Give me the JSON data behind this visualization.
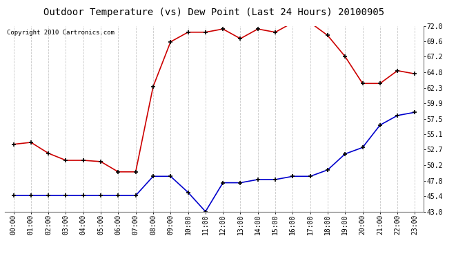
{
  "title": "Outdoor Temperature (vs) Dew Point (Last 24 Hours) 20100905",
  "copyright": "Copyright 2010 Cartronics.com",
  "x_labels": [
    "00:00",
    "01:00",
    "02:00",
    "03:00",
    "04:00",
    "05:00",
    "06:00",
    "07:00",
    "08:00",
    "09:00",
    "10:00",
    "11:00",
    "12:00",
    "13:00",
    "14:00",
    "15:00",
    "16:00",
    "17:00",
    "18:00",
    "19:00",
    "20:00",
    "21:00",
    "22:00",
    "23:00"
  ],
  "temp_data": [
    53.5,
    53.8,
    52.1,
    51.0,
    51.0,
    50.8,
    49.2,
    49.2,
    62.5,
    69.5,
    71.0,
    71.0,
    71.5,
    70.0,
    71.5,
    71.0,
    72.5,
    72.5,
    70.5,
    67.2,
    63.0,
    63.0,
    65.0,
    64.5
  ],
  "dew_data": [
    45.5,
    45.5,
    45.5,
    45.5,
    45.5,
    45.5,
    45.5,
    45.5,
    48.5,
    48.5,
    46.0,
    43.0,
    47.5,
    47.5,
    48.0,
    48.0,
    48.5,
    48.5,
    49.5,
    52.0,
    53.0,
    56.5,
    58.0,
    58.5
  ],
  "temp_color": "#cc0000",
  "dew_color": "#0000cc",
  "bg_color": "#ffffff",
  "grid_color": "#c8c8c8",
  "ylim": [
    43.0,
    72.0
  ],
  "yticks": [
    43.0,
    45.4,
    47.8,
    50.2,
    52.7,
    55.1,
    57.5,
    59.9,
    62.3,
    64.8,
    67.2,
    69.6,
    72.0
  ],
  "title_fontsize": 10,
  "copyright_fontsize": 6.5,
  "tick_fontsize": 7,
  "marker": "+",
  "linewidth": 1.2,
  "markersize": 5,
  "markerwidth": 1.2
}
